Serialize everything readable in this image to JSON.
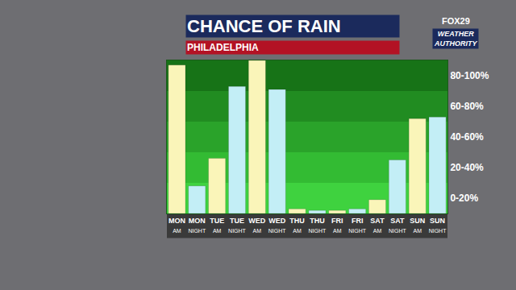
{
  "chart_data": {
    "type": "bar",
    "title": "CHANCE OF RAIN",
    "subtitle": "PHILADELPHIA",
    "annotations": [
      "FOX29",
      "WEATHER AUTHORITY"
    ],
    "categories": [
      "MON AM",
      "MON NIGHT",
      "TUE AM",
      "TUE NIGHT",
      "WED AM",
      "WED NIGHT",
      "THU AM",
      "THU NIGHT",
      "FRI AM",
      "FRI NIGHT",
      "SAT AM",
      "SAT NIGHT",
      "SUN AM",
      "SUN NIGHT"
    ],
    "values": [
      97,
      18,
      36,
      83,
      100,
      81,
      3,
      2,
      2,
      3,
      9,
      35,
      62,
      63
    ],
    "colors": [
      "#faf5b9",
      "#c3eef6",
      "#faf5b9",
      "#c3eef6",
      "#faf5b9",
      "#c3eef6",
      "#faf5b9",
      "#c3eef6",
      "#faf5b9",
      "#c3eef6",
      "#faf5b9",
      "#c3eef6",
      "#faf5b9",
      "#c3eef6"
    ],
    "ylim": [
      0,
      100
    ],
    "yticks": [
      {
        "value": 10,
        "label": "0-20%"
      },
      {
        "value": 30,
        "label": "20-40%"
      },
      {
        "value": 50,
        "label": "40-60%"
      },
      {
        "value": 70,
        "label": "60-80%"
      },
      {
        "value": 90,
        "label": "80-100%"
      }
    ],
    "grid": false
  }
}
